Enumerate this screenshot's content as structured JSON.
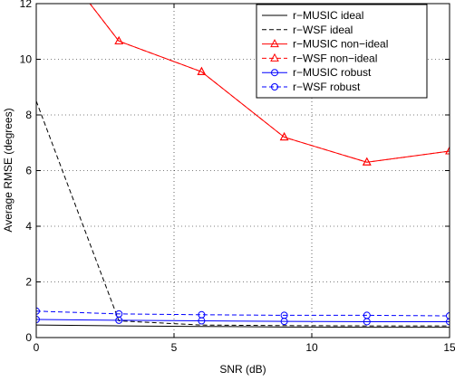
{
  "chart_data": {
    "type": "line",
    "title": "",
    "xlabel": "SNR (dB)",
    "ylabel": "Average RMSE (degrees)",
    "xlim": [
      0,
      15
    ],
    "ylim": [
      0,
      12
    ],
    "xticks": [
      0,
      5,
      10,
      15
    ],
    "yticks": [
      0,
      2,
      4,
      6,
      8,
      10,
      12
    ],
    "grid": true,
    "legend_position": "top-right",
    "series": [
      {
        "name": "r−MUSIC ideal",
        "color": "#000000",
        "dash": "solid",
        "marker": "none",
        "x": [
          0,
          3,
          6,
          9,
          12,
          15
        ],
        "y": [
          0.45,
          0.42,
          0.4,
          0.38,
          0.37,
          0.37
        ]
      },
      {
        "name": "r−WSF ideal",
        "color": "#000000",
        "dash": "dashed",
        "marker": "none",
        "x": [
          0,
          3,
          6,
          9,
          12,
          15
        ],
        "y": [
          8.5,
          0.6,
          0.45,
          0.43,
          0.42,
          0.42
        ]
      },
      {
        "name": "r−MUSIC non−ideal",
        "color": "#ff0000",
        "dash": "solid",
        "marker": "triangle",
        "x": [
          0,
          3,
          6,
          9,
          12,
          15
        ],
        "y": [
          14.5,
          10.65,
          9.55,
          7.2,
          6.3,
          6.7
        ]
      },
      {
        "name": "r−WSF non−ideal",
        "color": "#ff0000",
        "dash": "dashed",
        "marker": "triangle",
        "x": [
          0,
          3,
          6,
          9,
          12,
          15
        ],
        "y": [
          14.5,
          10.65,
          9.55,
          7.2,
          6.3,
          6.7
        ]
      },
      {
        "name": "r−MUSIC robust",
        "color": "#0000ff",
        "dash": "solid",
        "marker": "circle",
        "x": [
          0,
          3,
          6,
          9,
          12,
          15
        ],
        "y": [
          0.65,
          0.62,
          0.6,
          0.58,
          0.57,
          0.57
        ]
      },
      {
        "name": "r−WSF robust",
        "color": "#0000ff",
        "dash": "dashed",
        "marker": "circle",
        "x": [
          0,
          3,
          6,
          9,
          12,
          15
        ],
        "y": [
          0.95,
          0.85,
          0.82,
          0.8,
          0.8,
          0.78
        ]
      }
    ]
  }
}
